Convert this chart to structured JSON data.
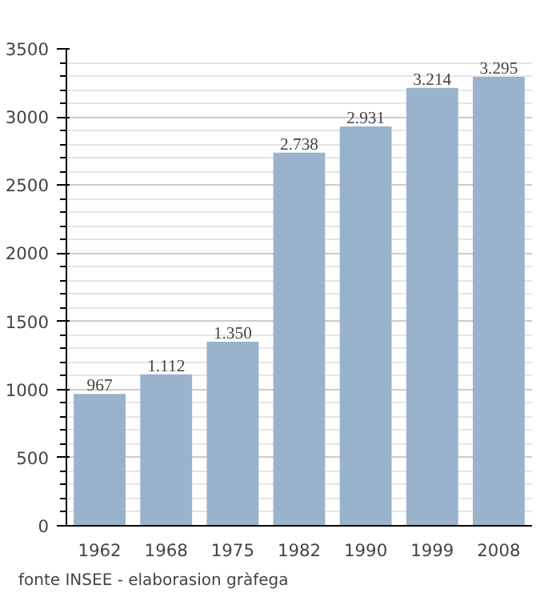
{
  "chart_data": {
    "type": "bar",
    "categories": [
      "1962",
      "1968",
      "1975",
      "1982",
      "1990",
      "1999",
      "2008"
    ],
    "values": [
      967,
      1112,
      1350,
      2738,
      2931,
      3214,
      3295
    ],
    "value_labels": [
      "967",
      "1.112",
      "1.350",
      "2.738",
      "2.931",
      "3.214",
      "3.295"
    ],
    "color": "#9ab3cd",
    "ylim": [
      0,
      3500
    ],
    "yticks": [
      0,
      500,
      1000,
      1500,
      2000,
      2500,
      3000,
      3500
    ],
    "grid": "y",
    "annotations": [
      "fonte INSEE - elaborasion gràfega"
    ]
  }
}
